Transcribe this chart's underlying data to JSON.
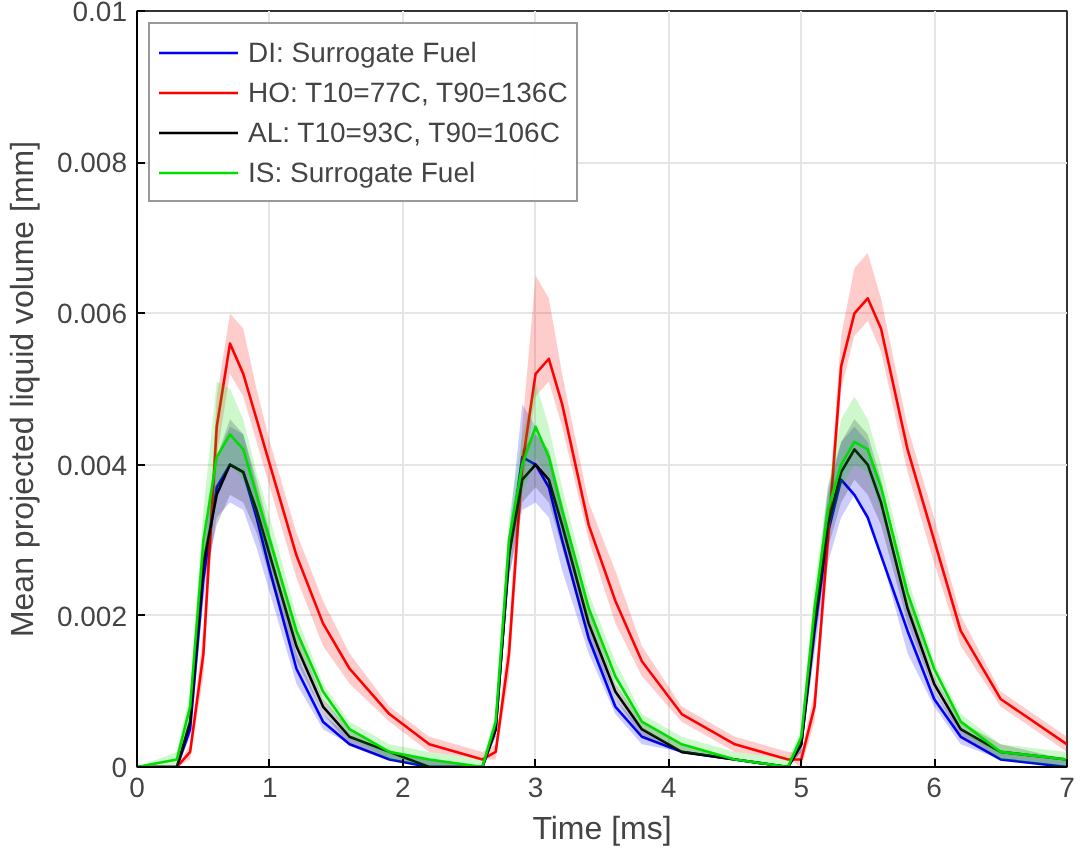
{
  "chart_data": {
    "type": "line",
    "xlabel": "Time [ms]",
    "ylabel": "Mean projected liquid volume [mm]",
    "xlim": [
      0,
      7
    ],
    "ylim": [
      0,
      0.01
    ],
    "xticks": [
      0,
      1,
      2,
      3,
      4,
      5,
      6,
      7
    ],
    "yticks": [
      0,
      0.002,
      0.004,
      0.006,
      0.008,
      0.01
    ],
    "grid": true,
    "legend": "top left",
    "line_style": "solid",
    "x": [
      0,
      0.3,
      0.4,
      0.5,
      0.6,
      0.7,
      0.8,
      0.9,
      1.0,
      1.2,
      1.4,
      1.6,
      1.9,
      2.2,
      2.6,
      2.7,
      2.8,
      2.9,
      3.0,
      3.1,
      3.2,
      3.4,
      3.6,
      3.8,
      4.1,
      4.5,
      4.9,
      5.0,
      5.1,
      5.2,
      5.3,
      5.4,
      5.5,
      5.6,
      5.8,
      6.0,
      6.2,
      6.5,
      7.0
    ],
    "series": [
      {
        "name": "DI: Surrogate Fuel",
        "color": "#0000ff",
        "values": [
          0,
          0,
          0.0005,
          0.0025,
          0.0037,
          0.004,
          0.0039,
          0.0033,
          0.0026,
          0.0013,
          0.0006,
          0.0003,
          0.0001,
          0,
          0,
          0.0005,
          0.0028,
          0.0041,
          0.004,
          0.0037,
          0.003,
          0.0017,
          0.0008,
          0.0004,
          0.0002,
          0.0001,
          0,
          0.0003,
          0.0018,
          0.0031,
          0.0038,
          0.0036,
          0.0033,
          0.0028,
          0.0018,
          0.0009,
          0.0004,
          0.0001,
          0
        ],
        "lower": [
          0,
          0,
          0.0004,
          0.0022,
          0.0033,
          0.0035,
          0.0034,
          0.0029,
          0.0023,
          0.0011,
          0.0005,
          0.0003,
          0.0001,
          0,
          0,
          0.0004,
          0.0025,
          0.0034,
          0.0035,
          0.0033,
          0.0026,
          0.0015,
          0.0007,
          0.0003,
          0.0002,
          0.0001,
          0,
          0.0002,
          0.0015,
          0.0027,
          0.0033,
          0.0036,
          0.0033,
          0.0028,
          0.0015,
          0.0008,
          0.0003,
          0.0001,
          0
        ],
        "upper": [
          0,
          0,
          0.0006,
          0.0028,
          0.0041,
          0.0045,
          0.0044,
          0.0037,
          0.0029,
          0.0015,
          0.0007,
          0.0004,
          0.0002,
          0.0001,
          0,
          0.0006,
          0.0031,
          0.0048,
          0.0045,
          0.0041,
          0.0034,
          0.0019,
          0.0009,
          0.0005,
          0.0002,
          0.0001,
          0,
          0.0004,
          0.0021,
          0.0037,
          0.0043,
          0.0045,
          0.0043,
          0.0036,
          0.0021,
          0.001,
          0.0005,
          0.0002,
          0.0001
        ]
      },
      {
        "name": "HO: T10=77C, T90=136C",
        "color": "#ff0000",
        "values": [
          0,
          0,
          0.0002,
          0.0015,
          0.0045,
          0.0056,
          0.0052,
          0.0046,
          0.004,
          0.0028,
          0.0019,
          0.0013,
          0.0007,
          0.0003,
          0.0001,
          0.0002,
          0.0015,
          0.004,
          0.0052,
          0.0054,
          0.0048,
          0.0032,
          0.0022,
          0.0014,
          0.0007,
          0.0003,
          0.0001,
          0.0001,
          0.0008,
          0.003,
          0.0053,
          0.006,
          0.0062,
          0.0058,
          0.0042,
          0.003,
          0.0018,
          0.0009,
          0.0003
        ],
        "lower": [
          0,
          0,
          0.0001,
          0.0012,
          0.0041,
          0.0052,
          0.0049,
          0.0043,
          0.0037,
          0.0025,
          0.0016,
          0.0011,
          0.0006,
          0.0002,
          0.0001,
          0.0001,
          0.0012,
          0.0037,
          0.0049,
          0.0051,
          0.0045,
          0.003,
          0.0019,
          0.0012,
          0.0006,
          0.0002,
          0.0001,
          0,
          0.0006,
          0.0027,
          0.005,
          0.0057,
          0.0059,
          0.0055,
          0.0039,
          0.0027,
          0.0016,
          0.0008,
          0.0002
        ],
        "upper": [
          0,
          0,
          0.0003,
          0.0018,
          0.0049,
          0.006,
          0.0058,
          0.005,
          0.0043,
          0.0031,
          0.0022,
          0.0015,
          0.0008,
          0.0004,
          0.0002,
          0.0003,
          0.0018,
          0.0045,
          0.0065,
          0.0062,
          0.0052,
          0.0035,
          0.0026,
          0.0016,
          0.0008,
          0.0004,
          0.0002,
          0.0002,
          0.001,
          0.0033,
          0.0057,
          0.0066,
          0.0068,
          0.0062,
          0.0045,
          0.0033,
          0.002,
          0.001,
          0.0004
        ]
      },
      {
        "name": "AL: T10=93C, T90=106C",
        "color": "#000000",
        "values": [
          0,
          0,
          0.0006,
          0.0027,
          0.0036,
          0.004,
          0.0039,
          0.0034,
          0.0028,
          0.0016,
          0.0008,
          0.0004,
          0.0002,
          0,
          0,
          0.0005,
          0.0028,
          0.0038,
          0.004,
          0.0038,
          0.0032,
          0.0019,
          0.001,
          0.0005,
          0.0002,
          0.0001,
          0,
          0.0003,
          0.0019,
          0.0032,
          0.0039,
          0.0042,
          0.004,
          0.0035,
          0.0021,
          0.0011,
          0.0005,
          0.0002,
          0.0001
        ],
        "lower": [
          0,
          0,
          0.0005,
          0.0024,
          0.0032,
          0.0036,
          0.0035,
          0.0031,
          0.0025,
          0.0014,
          0.0007,
          0.0003,
          0.0001,
          0,
          0,
          0.0004,
          0.0025,
          0.0035,
          0.0037,
          0.0035,
          0.0029,
          0.0017,
          0.0009,
          0.0004,
          0.0002,
          0.0001,
          0,
          0.0002,
          0.0016,
          0.0029,
          0.0035,
          0.0038,
          0.0036,
          0.0032,
          0.0019,
          0.001,
          0.0004,
          0.0001,
          0
        ],
        "upper": [
          0,
          0,
          0.0007,
          0.003,
          0.0041,
          0.0046,
          0.0044,
          0.0038,
          0.0031,
          0.0018,
          0.0009,
          0.0005,
          0.0002,
          0.0001,
          0,
          0.0006,
          0.0031,
          0.0042,
          0.0044,
          0.0042,
          0.0035,
          0.0021,
          0.0011,
          0.0006,
          0.0003,
          0.0001,
          0,
          0.0004,
          0.0022,
          0.0036,
          0.0043,
          0.0046,
          0.0044,
          0.0038,
          0.0023,
          0.0012,
          0.0006,
          0.0003,
          0.0001
        ]
      },
      {
        "name": "IS: Surrogate Fuel",
        "color": "#00dd00",
        "values": [
          0,
          0.0001,
          0.0008,
          0.003,
          0.0041,
          0.0044,
          0.0042,
          0.0036,
          0.003,
          0.0018,
          0.001,
          0.0005,
          0.0002,
          0.0001,
          0,
          0.0006,
          0.003,
          0.004,
          0.0045,
          0.0041,
          0.0034,
          0.0021,
          0.0012,
          0.0006,
          0.0003,
          0.0001,
          0,
          0.0004,
          0.0021,
          0.0034,
          0.004,
          0.0043,
          0.0042,
          0.0037,
          0.0023,
          0.0013,
          0.0006,
          0.0002,
          0.0001
        ],
        "lower": [
          0,
          0,
          0.0006,
          0.0027,
          0.0037,
          0.004,
          0.0038,
          0.0033,
          0.0027,
          0.0016,
          0.0009,
          0.0004,
          0.0001,
          0,
          0,
          0.0005,
          0.0027,
          0.0036,
          0.0041,
          0.0038,
          0.0031,
          0.0019,
          0.0011,
          0.0005,
          0.0002,
          0.0001,
          0,
          0.0003,
          0.0018,
          0.0031,
          0.0037,
          0.004,
          0.0039,
          0.0034,
          0.0021,
          0.0012,
          0.0005,
          0.0001,
          0
        ],
        "upper": [
          0,
          0.0002,
          0.001,
          0.0034,
          0.0051,
          0.005,
          0.0046,
          0.0039,
          0.0033,
          0.002,
          0.0011,
          0.0006,
          0.0003,
          0.0002,
          0.0001,
          0.0007,
          0.0033,
          0.0044,
          0.0051,
          0.0045,
          0.0037,
          0.0023,
          0.0014,
          0.0007,
          0.0004,
          0.0002,
          0.0001,
          0.0005,
          0.0024,
          0.0037,
          0.0046,
          0.0049,
          0.0046,
          0.004,
          0.0025,
          0.0014,
          0.0007,
          0.0003,
          0.0002
        ]
      }
    ]
  }
}
